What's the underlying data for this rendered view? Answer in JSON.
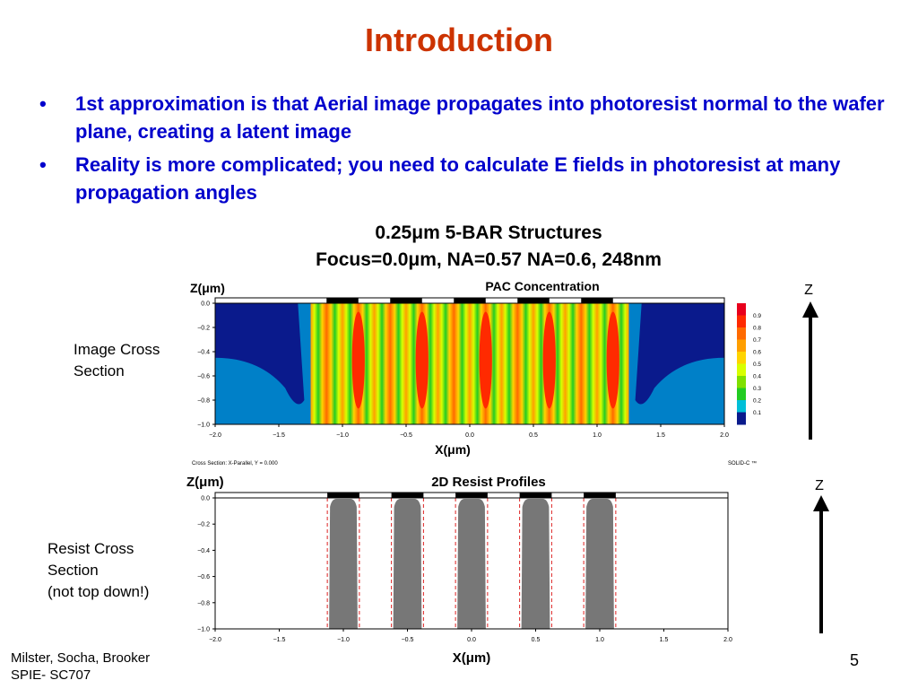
{
  "slide": {
    "title": "Introduction",
    "bullets": [
      "1st approximation is that Aerial image propagates into photoresist normal to the wafer plane, creating a latent image",
      "Reality is more complicated; you need to calculate E fields in photoresist at many propagation angles"
    ],
    "bullet_glyph": "•",
    "figure_caption": {
      "line1": "0.25μm 5-BAR Structures",
      "line2": "Focus=0.0μm, NA=0.57 NA=0.6, 248nm"
    },
    "side_labels": {
      "image": [
        "Image Cross",
        "Section"
      ],
      "resist": [
        "Resist Cross",
        "Section",
        "(not top down!)"
      ]
    },
    "axis_marker": "Z",
    "footer": [
      "Milster, Socha, Brooker",
      "SPIE- SC707"
    ],
    "page_number": "5"
  },
  "chart_data": [
    {
      "type": "heatmap",
      "title": "PAC Concentration",
      "xlabel": "X(μm)",
      "ylabel": "Z(μm)",
      "xlim": [
        -2.0,
        2.0
      ],
      "ylim": [
        -1.0,
        0.0
      ],
      "x_ticks": [
        "-2.0",
        "-1.5",
        "-1.0",
        "-0.5",
        "0.0",
        "0.5",
        "1.0",
        "1.5",
        "2.0"
      ],
      "y_ticks": [
        "0.0",
        "-0.2",
        "-0.4",
        "-0.6",
        "-0.8",
        "-1.0"
      ],
      "colorbar_ticks": [
        "0.9",
        "0.8",
        "0.7",
        "0.6",
        "0.5",
        "0.4",
        "0.3",
        "0.2",
        "0.1"
      ],
      "colorbar_colors": [
        "#e8001c",
        "#ff2a00",
        "#ff6a00",
        "#ff9f00",
        "#ffd400",
        "#d8ff00",
        "#7fe000",
        "#22cc22",
        "#00bfd8",
        "#0a1a8c"
      ],
      "line_centers": [
        -1.0,
        -0.5,
        0.0,
        0.5,
        1.0
      ],
      "line_width": 0.25,
      "footnote_left": "Cross Section:  X-Parallel,  Y = 0.000",
      "footnote_right": "SOLID-C ™"
    },
    {
      "type": "area",
      "title": "2D Resist Profiles",
      "xlabel": "X(μm)",
      "ylabel": "Z(μm)",
      "xlim": [
        -2.0,
        2.0
      ],
      "ylim": [
        -1.0,
        0.0
      ],
      "x_ticks": [
        "-2.0",
        "-1.5",
        "-1.0",
        "-0.5",
        "0.0",
        "0.5",
        "1.0",
        "1.5",
        "2.0"
      ],
      "y_ticks": [
        "0.0",
        "-0.2",
        "-0.4",
        "-0.6",
        "-0.8",
        "-1.0"
      ],
      "line_centers": [
        -1.0,
        -0.5,
        0.0,
        0.5,
        1.0
      ],
      "line_width": 0.25,
      "profile_color": "#777777",
      "edge_color": "#dd2222"
    }
  ]
}
